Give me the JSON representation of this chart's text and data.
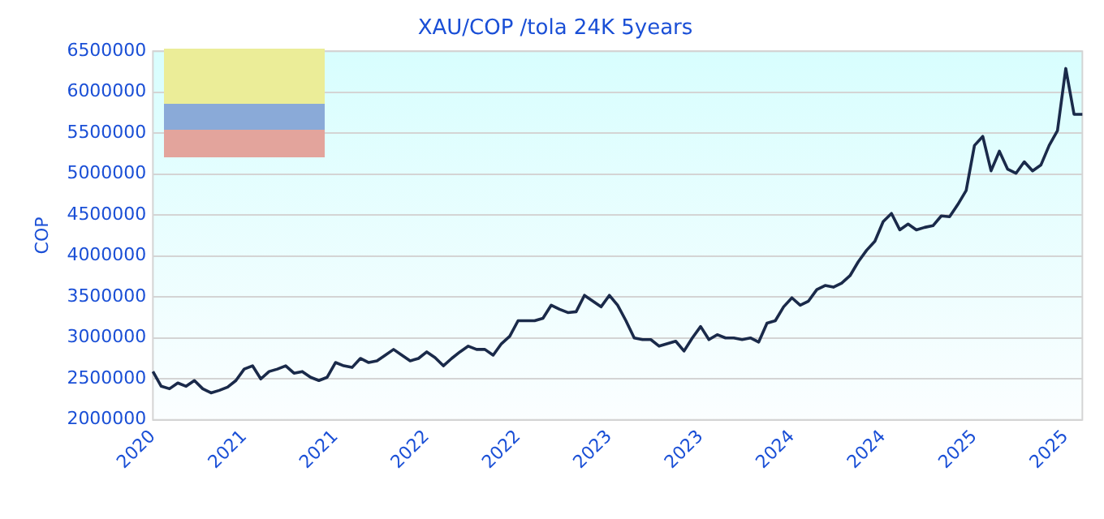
{
  "chart_data": {
    "type": "line",
    "title": "XAU/COP /tola 24K 5years",
    "ylabel": "COP",
    "categories": [
      "2020",
      null,
      null,
      null,
      null,
      null,
      null,
      null,
      null,
      null,
      null,
      "2021",
      null,
      null,
      null,
      null,
      null,
      null,
      null,
      null,
      null,
      null,
      "2021",
      null,
      null,
      null,
      null,
      null,
      null,
      null,
      null,
      null,
      null,
      "2022",
      null,
      null,
      null,
      null,
      null,
      null,
      null,
      null,
      null,
      null,
      "2022",
      null,
      null,
      null,
      null,
      null,
      null,
      null,
      null,
      null,
      null,
      "2023",
      null,
      null,
      null,
      null,
      null,
      null,
      null,
      null,
      null,
      null,
      "2023",
      null,
      null,
      null,
      null,
      null,
      null,
      null,
      null,
      null,
      null,
      "2024",
      null,
      null,
      null,
      null,
      null,
      null,
      null,
      null,
      null,
      null,
      "2024",
      null,
      null,
      null,
      null,
      null,
      null,
      null,
      null,
      null,
      null,
      "2025",
      null,
      null,
      null,
      null,
      null,
      null,
      null,
      null,
      null,
      null,
      "2025",
      null,
      null
    ],
    "series": [
      {
        "color": "#1a2a4a",
        "values": [
          2590000,
          2410000,
          2380000,
          2450000,
          2410000,
          2480000,
          2380000,
          2330000,
          2360000,
          2400000,
          2480000,
          2620000,
          2660000,
          2500000,
          2590000,
          2620000,
          2660000,
          2570000,
          2590000,
          2520000,
          2480000,
          2520000,
          2700000,
          2660000,
          2640000,
          2750000,
          2700000,
          2720000,
          2790000,
          2860000,
          2790000,
          2720000,
          2750000,
          2830000,
          2760000,
          2660000,
          2750000,
          2830000,
          2900000,
          2860000,
          2860000,
          2790000,
          2930000,
          3020000,
          3210000,
          3210000,
          3210000,
          3240000,
          3400000,
          3350000,
          3310000,
          3320000,
          3520000,
          3450000,
          3380000,
          3520000,
          3400000,
          3210000,
          3000000,
          2980000,
          2980000,
          2900000,
          2930000,
          2960000,
          2840000,
          3000000,
          3140000,
          2980000,
          3040000,
          3000000,
          3000000,
          2980000,
          3000000,
          2950000,
          3180000,
          3210000,
          3380000,
          3490000,
          3400000,
          3450000,
          3590000,
          3640000,
          3620000,
          3670000,
          3760000,
          3930000,
          4070000,
          4180000,
          4420000,
          4520000,
          4320000,
          4390000,
          4320000,
          4350000,
          4370000,
          4490000,
          4480000,
          4630000,
          4800000,
          5350000,
          5460000,
          5040000,
          5280000,
          5060000,
          5010000,
          5150000,
          5040000,
          5110000,
          5350000,
          5530000,
          6290000,
          5730000,
          5730000
        ]
      }
    ],
    "ylim": [
      2000000,
      6500000
    ],
    "yticks": [
      2000000,
      2500000,
      3000000,
      3500000,
      4000000,
      4500000,
      5000000,
      5500000,
      6000000,
      6500000
    ],
    "grid": "y"
  }
}
